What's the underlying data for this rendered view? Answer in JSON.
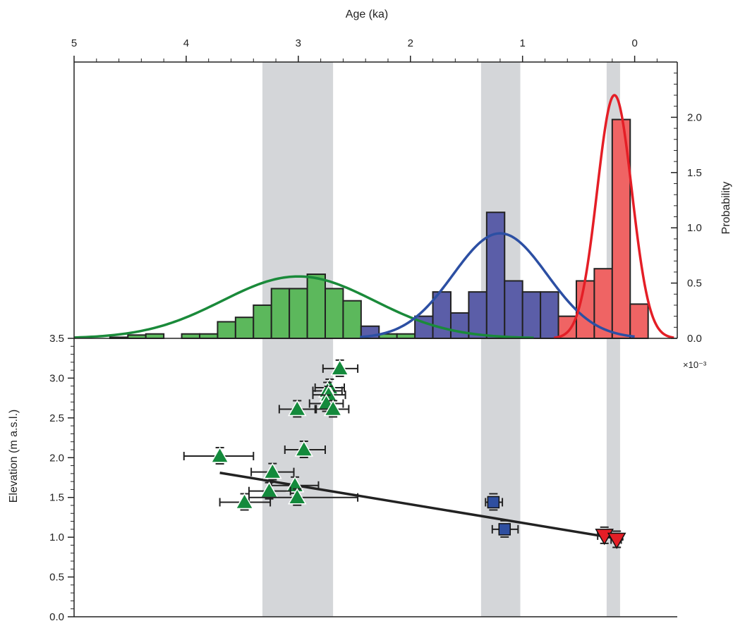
{
  "chart_data": {
    "type": "composite",
    "colors": {
      "green": "#5cb85c",
      "green_curve": "#1a8a3a",
      "green_marker": "#148a3c",
      "blue": "#5b5ea8",
      "blue_curve": "#2c4fa3",
      "blue_marker": "#2f4fa0",
      "red": "#ef6464",
      "red_curve": "#e41e26",
      "band": "#d4d6d9",
      "trend": "#222222"
    },
    "top_axis": {
      "label": "Age (ka)",
      "ticks": [
        "5",
        "4",
        "3",
        "2",
        "1",
        "0"
      ],
      "tick_values": [
        5,
        4,
        3,
        2,
        1,
        0
      ],
      "range": [
        5,
        -0.38
      ]
    },
    "right_axis": {
      "label": "Probability",
      "ticks": [
        "0.0",
        "0.5",
        "1.0",
        "1.5",
        "2.0"
      ],
      "tick_values": [
        0,
        0.5,
        1,
        1.5,
        2
      ],
      "range": [
        0,
        2.5
      ],
      "multiplier": "×10⁻³"
    },
    "left_axis": {
      "label": "Elevation (m a.s.l.)",
      "ticks": [
        "0.0",
        "0.5",
        "1.0",
        "1.5",
        "2.0",
        "2.5",
        "3.0",
        "3.5"
      ],
      "tick_values": [
        0,
        0.5,
        1,
        1.5,
        2,
        2.5,
        3,
        3.5
      ],
      "range": [
        0,
        3.5
      ]
    },
    "bands": [
      [
        3.32,
        2.69
      ],
      [
        1.37,
        1.02
      ],
      [
        0.25,
        0.13
      ]
    ],
    "histograms": [
      {
        "name": "green",
        "bin_width": 0.16,
        "bins": [
          {
            "x": 4.6,
            "p": 0.01
          },
          {
            "x": 4.44,
            "p": 0.03
          },
          {
            "x": 4.28,
            "p": 0.04
          },
          {
            "x": 3.96,
            "p": 0.04
          },
          {
            "x": 3.8,
            "p": 0.04
          },
          {
            "x": 3.64,
            "p": 0.15
          },
          {
            "x": 3.48,
            "p": 0.19
          },
          {
            "x": 3.32,
            "p": 0.3
          },
          {
            "x": 3.16,
            "p": 0.45
          },
          {
            "x": 3.0,
            "p": 0.45
          },
          {
            "x": 2.84,
            "p": 0.58
          },
          {
            "x": 2.68,
            "p": 0.45
          },
          {
            "x": 2.52,
            "p": 0.34
          },
          {
            "x": 2.2,
            "p": 0.04
          },
          {
            "x": 2.04,
            "p": 0.04
          }
        ]
      },
      {
        "name": "blue",
        "bin_width": 0.16,
        "bins": [
          {
            "x": 2.36,
            "p": 0.11
          },
          {
            "x": 1.88,
            "p": 0.2
          },
          {
            "x": 1.72,
            "p": 0.42
          },
          {
            "x": 1.56,
            "p": 0.23
          },
          {
            "x": 1.4,
            "p": 0.42
          },
          {
            "x": 1.24,
            "p": 1.14
          },
          {
            "x": 1.08,
            "p": 0.52
          },
          {
            "x": 0.92,
            "p": 0.42
          },
          {
            "x": 0.76,
            "p": 0.42
          },
          {
            "x": 0.6,
            "p": 0.11
          },
          {
            "x": 0.44,
            "p": 0.1
          },
          {
            "x": 0.12,
            "p": 0.1
          }
        ]
      },
      {
        "name": "red",
        "bin_width": 0.16,
        "bins": [
          {
            "x": 0.6,
            "p": 0.2
          },
          {
            "x": 0.44,
            "p": 0.52
          },
          {
            "x": 0.28,
            "p": 0.63
          },
          {
            "x": 0.12,
            "p": 1.98
          },
          {
            "x": -0.04,
            "p": 0.31
          }
        ]
      }
    ],
    "curves": [
      {
        "name": "green",
        "mu": 3.0,
        "sigma": 0.68,
        "peak": 0.56,
        "range": [
          5.0,
          0.9
        ]
      },
      {
        "name": "blue",
        "mu": 1.2,
        "sigma": 0.42,
        "peak": 0.95,
        "range": [
          2.45,
          0.0
        ]
      },
      {
        "name": "red",
        "mu": 0.18,
        "sigma": 0.155,
        "peak": 2.2,
        "range": [
          0.72,
          -0.35
        ]
      }
    ],
    "points": [
      {
        "series": "green",
        "shape": "triangle",
        "x": 2.63,
        "y": 3.12,
        "xerr": [
          2.78,
          2.47
        ]
      },
      {
        "series": "green",
        "shape": "triangle",
        "x": 2.72,
        "y": 2.88,
        "xerr": [
          2.85,
          2.59
        ]
      },
      {
        "series": "green",
        "shape": "triangle",
        "x": 2.74,
        "y": 2.84,
        "xerr": [
          2.87,
          2.61
        ]
      },
      {
        "series": "green",
        "shape": "triangle",
        "x": 2.73,
        "y": 2.79,
        "xerr": [
          2.87,
          2.58
        ]
      },
      {
        "series": "green",
        "shape": "triangle",
        "x": 2.75,
        "y": 2.68,
        "xerr": [
          2.9,
          2.6
        ]
      },
      {
        "series": "green",
        "shape": "triangle",
        "x": 2.69,
        "y": 2.61,
        "xerr": [
          2.84,
          2.55
        ]
      },
      {
        "series": "green",
        "shape": "triangle",
        "x": 3.01,
        "y": 2.61,
        "xerr": [
          3.17,
          2.85
        ]
      },
      {
        "series": "green",
        "shape": "triangle",
        "x": 2.95,
        "y": 2.1,
        "xerr": [
          3.12,
          2.76
        ]
      },
      {
        "series": "green",
        "shape": "triangle",
        "x": 3.7,
        "y": 2.02,
        "xerr": [
          4.02,
          3.4
        ]
      },
      {
        "series": "green",
        "shape": "triangle",
        "x": 3.23,
        "y": 1.82,
        "xerr": [
          3.42,
          3.04
        ]
      },
      {
        "series": "green",
        "shape": "triangle",
        "x": 3.03,
        "y": 1.65,
        "xerr": [
          3.24,
          2.82
        ]
      },
      {
        "series": "green",
        "shape": "triangle",
        "x": 3.26,
        "y": 1.58,
        "xerr": [
          3.44,
          3.07
        ]
      },
      {
        "series": "green",
        "shape": "triangle",
        "x": 3.01,
        "y": 1.5,
        "xerr": [
          3.44,
          2.47
        ]
      },
      {
        "series": "green",
        "shape": "triangle",
        "x": 3.48,
        "y": 1.44,
        "xerr": [
          3.7,
          3.25
        ]
      },
      {
        "series": "blue",
        "shape": "square",
        "x": 1.26,
        "y": 1.44,
        "xerr": [
          1.33,
          1.18
        ]
      },
      {
        "series": "blue",
        "shape": "square",
        "x": 1.16,
        "y": 1.1,
        "xerr": [
          1.27,
          1.04
        ]
      },
      {
        "series": "red",
        "shape": "triangle-down",
        "x": 0.27,
        "y": 1.02,
        "xerr": [
          0.33,
          0.21
        ]
      },
      {
        "series": "red",
        "shape": "triangle-down",
        "x": 0.16,
        "y": 0.97,
        "xerr": [
          0.21,
          0.12
        ]
      }
    ],
    "trendline": {
      "x": [
        3.7,
        0.1
      ],
      "y": [
        1.81,
        0.97
      ]
    }
  }
}
